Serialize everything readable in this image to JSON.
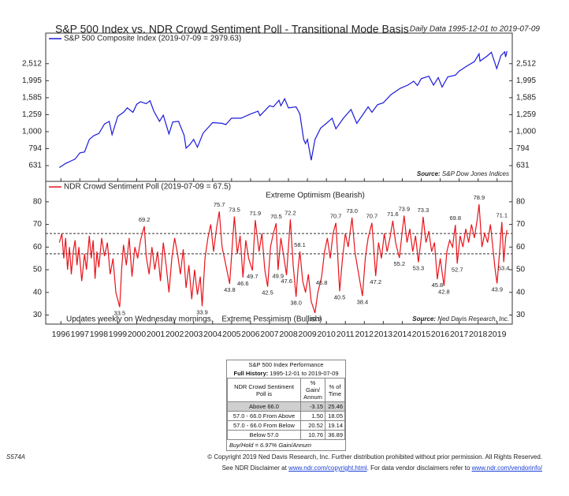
{
  "header": {
    "title": "S&P 500 Index vs. NDR Crowd Sentiment Poll - Transitional Mode Basis",
    "date_range": "Daily Data 1995-12-01 to 2019-07-09"
  },
  "chart_data": [
    {
      "type": "line",
      "yscale": "log",
      "xlim": [
        1995.2,
        2019.8
      ],
      "xticks": [
        1996,
        1997,
        1998,
        1999,
        2000,
        2001,
        2002,
        2003,
        2004,
        2005,
        2006,
        2007,
        2008,
        2009,
        2010,
        2011,
        2012,
        2013,
        2014,
        2015,
        2016,
        2017,
        2018,
        2019
      ],
      "ylim": [
        510,
        3800
      ],
      "yticks": [
        631,
        794,
        {
          "value": 1000,
          "label": "1,000"
        },
        {
          "value": 1259,
          "label": "1,259"
        },
        {
          "value": 1585,
          "label": "1,585"
        },
        {
          "value": 1995,
          "label": "1,995"
        },
        {
          "value": 2512,
          "label": "2,512"
        }
      ],
      "source_label": "Source:",
      "source": "S&P Dow Jones Indices",
      "x": [
        1995.92,
        1996.25,
        1996.5,
        1996.75,
        1997.0,
        1997.25,
        1997.5,
        1997.75,
        1998.0,
        1998.3,
        1998.55,
        1998.7,
        1999.0,
        1999.3,
        1999.5,
        1999.8,
        2000.0,
        2000.2,
        2000.5,
        2000.7,
        2000.9,
        2001.2,
        2001.4,
        2001.7,
        2001.9,
        2002.2,
        2002.5,
        2002.6,
        2002.8,
        2003.0,
        2003.2,
        2003.5,
        2004.0,
        2004.5,
        2004.7,
        2005.0,
        2005.5,
        2006.0,
        2006.4,
        2006.5,
        2007.0,
        2007.2,
        2007.5,
        2007.6,
        2007.8,
        2008.0,
        2008.4,
        2008.6,
        2008.8,
        2008.9,
        2009.0,
        2009.2,
        2009.4,
        2009.7,
        2010.0,
        2010.3,
        2010.5,
        2010.9,
        2011.3,
        2011.6,
        2011.9,
        2012.2,
        2012.4,
        2012.7,
        2013.0,
        2013.4,
        2013.9,
        2014.3,
        2014.6,
        2014.8,
        2015.0,
        2015.4,
        2015.65,
        2015.9,
        2016.1,
        2016.4,
        2016.8,
        2017.0,
        2017.4,
        2017.8,
        2018.05,
        2018.1,
        2018.5,
        2018.7,
        2018.98,
        2019.2,
        2019.4,
        2019.45,
        2019.52
      ],
      "series": [
        {
          "name": "S&P 500 Composite Index (2019-07-09 = 2979.63)",
          "color": "#1a1adb",
          "values": [
            615,
            650,
            670,
            690,
            750,
            760,
            900,
            950,
            975,
            1110,
            1150,
            960,
            1230,
            1300,
            1380,
            1300,
            1450,
            1500,
            1460,
            1520,
            1320,
            1150,
            1250,
            970,
            1140,
            1150,
            950,
            800,
            840,
            900,
            810,
            980,
            1130,
            1120,
            1100,
            1200,
            1200,
            1270,
            1320,
            1240,
            1420,
            1400,
            1530,
            1420,
            1560,
            1380,
            1400,
            1270,
            900,
            850,
            900,
            680,
            900,
            1050,
            1120,
            1200,
            1040,
            1200,
            1350,
            1120,
            1250,
            1400,
            1300,
            1440,
            1480,
            1650,
            1800,
            1880,
            1980,
            1870,
            2050,
            2120,
            1880,
            2080,
            1830,
            2100,
            2150,
            2270,
            2430,
            2580,
            2870,
            2600,
            2800,
            2930,
            2350,
            2800,
            2950,
            2750,
            2979.63
          ]
        }
      ]
    },
    {
      "type": "line",
      "xlim": [
        1995.2,
        2019.8
      ],
      "xticks": [
        1996,
        1997,
        1998,
        1999,
        2000,
        2001,
        2002,
        2003,
        2004,
        2005,
        2006,
        2007,
        2008,
        2009,
        2010,
        2011,
        2012,
        2013,
        2014,
        2015,
        2016,
        2017,
        2018,
        2019
      ],
      "ylim": [
        26,
        89
      ],
      "yticks": [
        30,
        40,
        50,
        60,
        70,
        80
      ],
      "hlines": [
        66,
        57
      ],
      "upper_label": "Extreme Optimism (Bearish)",
      "lower_label": "Extreme Pessimism (Bullish)",
      "note": "Updates weekly on Wednesday mornings.",
      "source_label": "Source:",
      "source": "Ned Davis Research, Inc.",
      "x": [
        1995.92,
        1996.05,
        1996.15,
        1996.25,
        1996.35,
        1996.45,
        1996.55,
        1996.65,
        1996.75,
        1996.85,
        1996.95,
        1997.1,
        1997.25,
        1997.35,
        1997.5,
        1997.6,
        1997.7,
        1997.8,
        1997.9,
        1998.0,
        1998.15,
        1998.3,
        1998.45,
        1998.6,
        1998.75,
        1998.9,
        1999.1,
        1999.2,
        1999.3,
        1999.45,
        1999.6,
        1999.75,
        1999.9,
        2000.05,
        2000.2,
        2000.4,
        2000.5,
        2000.65,
        2000.8,
        2000.95,
        2001.1,
        2001.25,
        2001.4,
        2001.55,
        2001.7,
        2001.85,
        2002.0,
        2002.15,
        2002.3,
        2002.45,
        2002.6,
        2002.75,
        2002.9,
        2003.05,
        2003.2,
        2003.35,
        2003.45,
        2003.6,
        2003.75,
        2003.9,
        2004.05,
        2004.2,
        2004.35,
        2004.5,
        2004.7,
        2004.9,
        2005.05,
        2005.15,
        2005.3,
        2005.45,
        2005.6,
        2005.75,
        2005.9,
        2006.1,
        2006.25,
        2006.45,
        2006.6,
        2006.75,
        2006.9,
        2007.05,
        2007.2,
        2007.35,
        2007.45,
        2007.6,
        2007.75,
        2007.9,
        2008.1,
        2008.25,
        2008.4,
        2008.5,
        2008.6,
        2008.75,
        2008.9,
        2009.05,
        2009.2,
        2009.4,
        2009.55,
        2009.75,
        2009.9,
        2010.05,
        2010.2,
        2010.35,
        2010.5,
        2010.7,
        2010.85,
        2011.0,
        2011.15,
        2011.35,
        2011.5,
        2011.7,
        2011.9,
        2012.05,
        2012.2,
        2012.4,
        2012.6,
        2012.75,
        2012.9,
        2013.05,
        2013.2,
        2013.35,
        2013.5,
        2013.65,
        2013.85,
        2014.0,
        2014.1,
        2014.25,
        2014.4,
        2014.55,
        2014.7,
        2014.85,
        2015.0,
        2015.1,
        2015.25,
        2015.4,
        2015.55,
        2015.7,
        2015.85,
        2016.0,
        2016.2,
        2016.35,
        2016.5,
        2016.65,
        2016.8,
        2016.9,
        2017.05,
        2017.2,
        2017.35,
        2017.5,
        2017.65,
        2017.8,
        2017.95,
        2018.05,
        2018.2,
        2018.35,
        2018.5,
        2018.65,
        2018.8,
        2018.9,
        2019.0,
        2019.15,
        2019.25,
        2019.35,
        2019.45,
        2019.52
      ],
      "series": [
        {
          "name": "NDR Crowd Sentiment Poll (2019-07-09 = 67.5)",
          "color": "#e8141b",
          "values": [
            62,
            66,
            55,
            64,
            50,
            60,
            48,
            58,
            63,
            52,
            60,
            45,
            57,
            50,
            65,
            55,
            63,
            46,
            58,
            51,
            64,
            56,
            62,
            48,
            55,
            40,
            33.5,
            50,
            61,
            52,
            64,
            47,
            60,
            55,
            63,
            69.2,
            56,
            48,
            60,
            50,
            58,
            45,
            62,
            52,
            40,
            55,
            64,
            57,
            48,
            59,
            42,
            52,
            37,
            50,
            39,
            47,
            33.9,
            55,
            64,
            70,
            58,
            68,
            75.7,
            60,
            52,
            43.8,
            62,
            73.5,
            57,
            65,
            46.6,
            63,
            55,
            49.7,
            71.9,
            58,
            66,
            50,
            42.5,
            60,
            66,
            70.5,
            49.9,
            64,
            56,
            47.6,
            72.2,
            52,
            38.0,
            50,
            58.1,
            45,
            40,
            48,
            36,
            30.9,
            40,
            46.8,
            58,
            64,
            55,
            66,
            70.7,
            40.5,
            55,
            66,
            60,
            73.0,
            58,
            48,
            38.4,
            55,
            64,
            70.7,
            47.2,
            62,
            55,
            66,
            58,
            64,
            71.6,
            62,
            55.2,
            67,
            73.9,
            62,
            68,
            58,
            65,
            53.3,
            64,
            73.3,
            62,
            67,
            58,
            62,
            45.8,
            55,
            42.8,
            58,
            63,
            60,
            69.8,
            52.7,
            65,
            60,
            68,
            62,
            70,
            64,
            72,
            78.9,
            60,
            66,
            62,
            70,
            58,
            50,
            43.9,
            60,
            71.1,
            53.4,
            64,
            67.5
          ],
          "value_labels": [
            null,
            null,
            null,
            null,
            null,
            null,
            null,
            null,
            null,
            null,
            null,
            null,
            null,
            null,
            null,
            null,
            null,
            null,
            null,
            null,
            null,
            null,
            null,
            null,
            null,
            null,
            "33.5",
            null,
            null,
            null,
            null,
            null,
            null,
            null,
            null,
            "69.2",
            null,
            null,
            null,
            null,
            null,
            null,
            null,
            null,
            null,
            null,
            null,
            null,
            null,
            null,
            null,
            null,
            null,
            null,
            null,
            null,
            "33.9",
            null,
            null,
            null,
            null,
            null,
            "75.7",
            null,
            null,
            "43.8",
            null,
            "73.5",
            null,
            null,
            "46.6",
            null,
            null,
            "49.7",
            "71.9",
            null,
            null,
            null,
            "42.5",
            null,
            null,
            "70.5",
            "49.9",
            null,
            null,
            "47.6",
            "72.2",
            null,
            "38.0",
            null,
            "58.1",
            null,
            null,
            null,
            null,
            "30.9",
            null,
            "46.8",
            null,
            null,
            null,
            null,
            "70.7",
            "40.5",
            null,
            null,
            null,
            "73.0",
            null,
            null,
            "38.4",
            null,
            null,
            "70.7",
            "47.2",
            null,
            null,
            null,
            null,
            null,
            "71.6",
            null,
            "55.2",
            null,
            "73.9",
            null,
            null,
            null,
            null,
            "53.3",
            null,
            "73.3",
            null,
            null,
            null,
            null,
            "45.8",
            null,
            "42.8",
            null,
            null,
            null,
            "69.8",
            "52.7",
            null,
            null,
            null,
            null,
            null,
            null,
            null,
            "78.9",
            null,
            null,
            null,
            null,
            null,
            null,
            "43.9",
            null,
            "71.1",
            "53.4",
            null,
            null
          ]
        }
      ]
    }
  ],
  "table": {
    "title": "S&P 500 Index Performance",
    "history_label": "Full History:",
    "history": "1995-12-01 to 2019-07-09",
    "header": [
      "NDR Crowd Sentiment Poll is",
      "% Gain/ Annum",
      "% of Time"
    ],
    "rows": [
      [
        "Above 66.0",
        "-3.15",
        "25.46"
      ],
      [
        "57.0 - 66.0 From Above",
        "1.50",
        "18.05"
      ],
      [
        "57.0 - 66.0 From Below",
        "20.52",
        "19.14"
      ],
      [
        "Below 57.0",
        "10.76",
        "36.89"
      ]
    ],
    "footer": "Buy/Hold = 6.97% Gain/Annum"
  },
  "footer": {
    "code": "S574A",
    "copyright": "© Copyright 2019 Ned Davis Research, Inc. Further distribution prohibited without prior permission. All Rights Reserved.",
    "disclaimer_prefix": "See NDR Disclaimer at",
    "link1": "www.ndr.com/copyright.html",
    "disclaimer_mid": ". For data vendor disclaimers refer to",
    "link2": "www.ndr.com/vendorinfo/"
  }
}
